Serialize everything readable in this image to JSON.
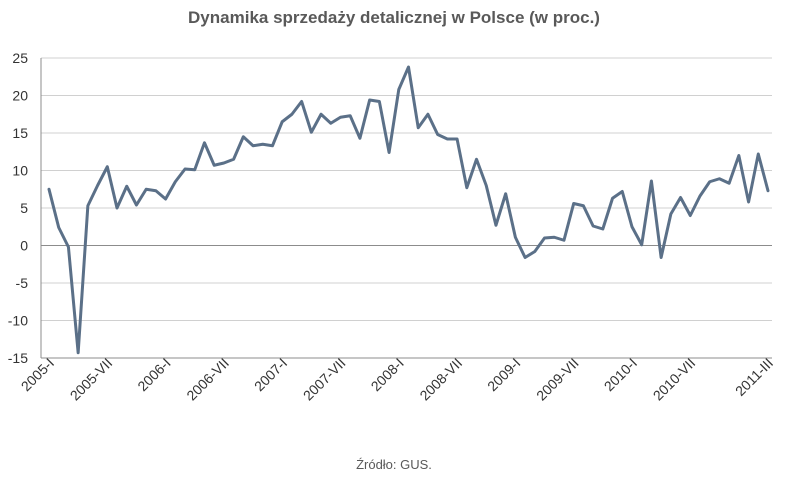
{
  "chart_data": {
    "type": "line",
    "title": "Dynamika sprzedaży detalicznej w Polsce (w proc.)",
    "source": "Źródło: GUS.",
    "xlabel": "",
    "ylabel": "",
    "ylim": [
      -15,
      25
    ],
    "yticks": [
      -15,
      -10,
      -5,
      0,
      5,
      10,
      15,
      20,
      25
    ],
    "grid": true,
    "legend": "none",
    "colors": {
      "line": "#5b7088",
      "grid": "#d0d0d0",
      "axis": "#8c8c8c"
    },
    "x_tick_labels": [
      {
        "label": "2005-I",
        "index": 0
      },
      {
        "label": "2005-VII",
        "index": 6
      },
      {
        "label": "2006-I",
        "index": 12
      },
      {
        "label": "2006-VII",
        "index": 18
      },
      {
        "label": "2007-I",
        "index": 24
      },
      {
        "label": "2007-VII",
        "index": 30
      },
      {
        "label": "2008-I",
        "index": 36
      },
      {
        "label": "2008-VII",
        "index": 42
      },
      {
        "label": "2009-I",
        "index": 48
      },
      {
        "label": "2009-VII",
        "index": 54
      },
      {
        "label": "2010-I",
        "index": 60
      },
      {
        "label": "2010-VII",
        "index": 66
      },
      {
        "label": "2011-III",
        "index": 74
      }
    ],
    "series": [
      {
        "values": [
          7.5,
          2.4,
          -0.2,
          -14.3,
          5.3,
          8.0,
          10.5,
          5.0,
          7.9,
          5.4,
          7.5,
          7.3,
          6.2,
          8.5,
          10.2,
          10.1,
          13.7,
          10.7,
          11.0,
          11.5,
          14.5,
          13.3,
          13.5,
          13.3,
          16.5,
          17.5,
          19.2,
          15.1,
          17.5,
          16.3,
          17.1,
          17.3,
          14.3,
          19.4,
          19.2,
          12.4,
          20.8,
          23.8,
          15.7,
          17.5,
          14.8,
          14.2,
          14.2,
          7.7,
          11.5,
          8.0,
          2.7,
          6.9,
          1.1,
          -1.6,
          -0.8,
          1.0,
          1.1,
          0.7,
          5.6,
          5.3,
          2.6,
          2.2,
          6.3,
          7.2,
          2.5,
          0.1,
          8.6,
          -1.6,
          4.2,
          6.4,
          4.0,
          6.6,
          8.5,
          8.9,
          8.3,
          12.0,
          5.8,
          12.2,
          7.3
        ]
      }
    ]
  }
}
